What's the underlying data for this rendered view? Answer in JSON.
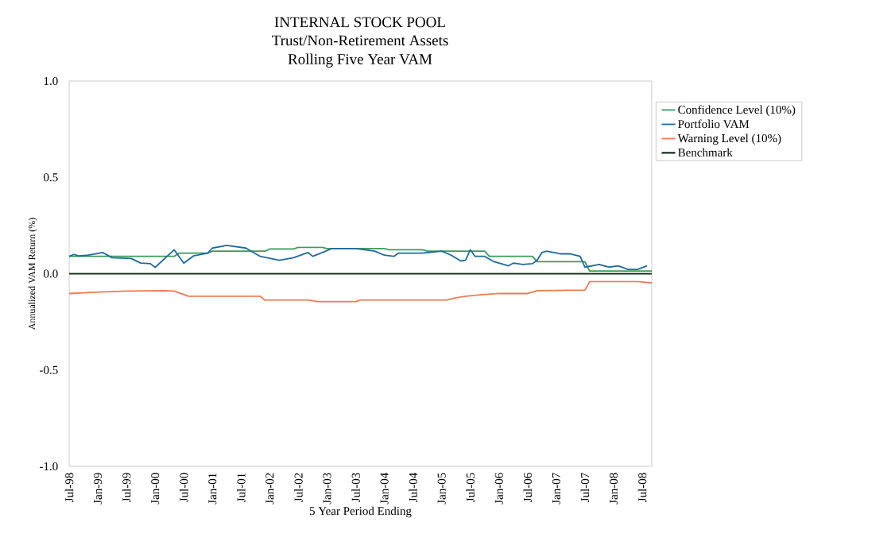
{
  "chart_data": {
    "type": "line",
    "title": "INTERNAL STOCK POOL",
    "subtitle": "Trust/Non-Retirement Assets",
    "annotations": [
      "Rolling Five Year VAM"
    ],
    "xlabel": "5 Year Period Ending",
    "ylabel": "Annualized VAM Return (%)",
    "xlim": [
      "1998-07",
      "2008-09"
    ],
    "xticks": [
      {
        "value": "1998-07",
        "label": "Jul-98"
      },
      {
        "value": "1999-01",
        "label": "Jan-99"
      },
      {
        "value": "1999-07",
        "label": "Jul-99"
      },
      {
        "value": "2000-01",
        "label": "Jan-00"
      },
      {
        "value": "2000-07",
        "label": "Jul-00"
      },
      {
        "value": "2001-01",
        "label": "Jan-01"
      },
      {
        "value": "2001-07",
        "label": "Jul-01"
      },
      {
        "value": "2002-01",
        "label": "Jan-02"
      },
      {
        "value": "2002-07",
        "label": "Jul-02"
      },
      {
        "value": "2003-01",
        "label": "Jan-03"
      },
      {
        "value": "2003-07",
        "label": "Jul-03"
      },
      {
        "value": "2004-01",
        "label": "Jan-04"
      },
      {
        "value": "2004-07",
        "label": "Jul-04"
      },
      {
        "value": "2005-01",
        "label": "Jan-05"
      },
      {
        "value": "2005-07",
        "label": "Jul-05"
      },
      {
        "value": "2006-01",
        "label": "Jan-06"
      },
      {
        "value": "2006-07",
        "label": "Jul-06"
      },
      {
        "value": "2007-01",
        "label": "Jan-07"
      },
      {
        "value": "2007-07",
        "label": "Jul-07"
      },
      {
        "value": "2008-01",
        "label": "Jan-08"
      },
      {
        "value": "2008-07",
        "label": "Jul-08"
      }
    ],
    "ylim": [
      -1,
      1
    ],
    "yticks": [
      {
        "value": -1,
        "label": "-1.0"
      },
      {
        "value": -0.5,
        "label": "-0.5"
      },
      {
        "value": 0,
        "label": "0.0"
      },
      {
        "value": 0.5,
        "label": "0.5"
      },
      {
        "value": 1,
        "label": "1.0"
      }
    ],
    "grid": false,
    "legend": "right",
    "series": [
      {
        "name": "Confidence Level (10%)",
        "color": "#3c9a5a",
        "x": [
          "1998-07",
          "2000-05",
          "2000-06",
          "2000-12",
          "2001-01",
          "2001-12",
          "2002-01",
          "2002-06",
          "2002-07",
          "2002-12",
          "2003-01",
          "2004-01",
          "2004-02",
          "2004-09",
          "2004-10",
          "2005-10",
          "2005-11",
          "2006-08",
          "2006-09",
          "2007-07",
          "2007-08",
          "2008-09"
        ],
        "values": [
          0.09,
          0.09,
          0.107,
          0.107,
          0.117,
          0.117,
          0.128,
          0.128,
          0.137,
          0.137,
          0.13,
          0.13,
          0.124,
          0.124,
          0.117,
          0.117,
          0.09,
          0.09,
          0.062,
          0.062,
          0.014,
          0.014
        ]
      },
      {
        "name": "Portfolio VAM",
        "color": "#1f6a9e",
        "x": [
          "1998-07",
          "1998-08",
          "1998-09",
          "1998-11",
          "1999-02",
          "1999-04",
          "1999-08",
          "1999-10",
          "1999-12",
          "2000-01",
          "2000-05",
          "2000-07",
          "2000-09",
          "2000-12",
          "2001-01",
          "2001-04",
          "2001-08",
          "2001-11",
          "2002-03",
          "2002-06",
          "2002-09",
          "2002-10",
          "2002-12",
          "2003-02",
          "2003-07",
          "2003-11",
          "2004-01",
          "2004-03",
          "2004-04",
          "2004-09",
          "2005-01",
          "2005-03",
          "2005-05",
          "2005-06",
          "2005-07",
          "2005-08",
          "2005-10",
          "2005-12",
          "2006-03",
          "2006-04",
          "2006-06",
          "2006-08",
          "2006-09",
          "2006-10",
          "2006-11",
          "2007-02",
          "2007-04",
          "2007-06",
          "2007-07",
          "2007-10",
          "2007-12",
          "2008-02",
          "2008-04",
          "2008-06",
          "2008-08"
        ],
        "values": [
          0.09,
          0.1,
          0.092,
          0.096,
          0.11,
          0.083,
          0.079,
          0.055,
          0.052,
          0.033,
          0.124,
          0.055,
          0.092,
          0.107,
          0.133,
          0.147,
          0.133,
          0.09,
          0.07,
          0.083,
          0.11,
          0.09,
          0.11,
          0.13,
          0.13,
          0.117,
          0.096,
          0.09,
          0.107,
          0.107,
          0.117,
          0.096,
          0.066,
          0.07,
          0.124,
          0.09,
          0.09,
          0.062,
          0.041,
          0.055,
          0.048,
          0.052,
          0.07,
          0.11,
          0.117,
          0.103,
          0.103,
          0.09,
          0.034,
          0.048,
          0.034,
          0.041,
          0.022,
          0.022,
          0.041
        ]
      },
      {
        "name": "Warning Level (10%)",
        "color": "#f07a52",
        "x": [
          "1998-07",
          "1999-01",
          "1999-07",
          "2000-03",
          "2000-05",
          "2000-08",
          "2001-11",
          "2001-12",
          "2002-09",
          "2002-11",
          "2003-07",
          "2003-08",
          "2005-02",
          "2005-04",
          "2005-06",
          "2005-09",
          "2006-01",
          "2006-07",
          "2006-09",
          "2007-07",
          "2007-08",
          "2008-06",
          "2008-09"
        ],
        "values": [
          -0.103,
          -0.095,
          -0.09,
          -0.088,
          -0.09,
          -0.117,
          -0.117,
          -0.137,
          -0.137,
          -0.145,
          -0.145,
          -0.137,
          -0.137,
          -0.125,
          -0.117,
          -0.11,
          -0.103,
          -0.103,
          -0.088,
          -0.085,
          -0.041,
          -0.041,
          -0.048
        ]
      },
      {
        "name": "Benchmark",
        "color": "#0b2e12",
        "x": [
          "1998-07",
          "2008-09"
        ],
        "values": [
          0,
          0
        ]
      }
    ]
  }
}
